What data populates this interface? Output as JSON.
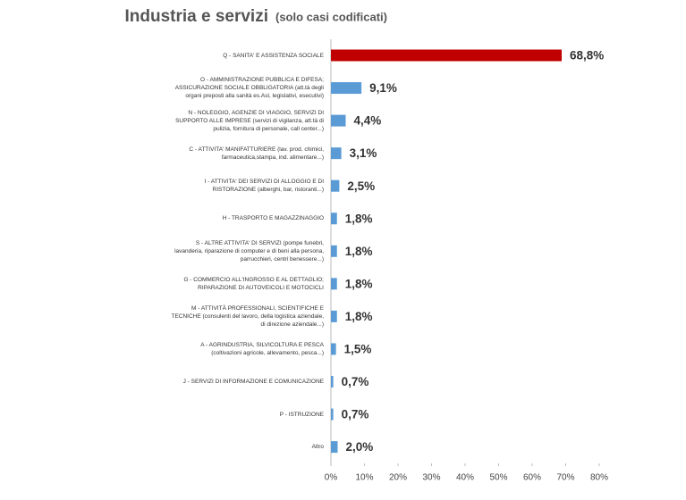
{
  "chart_data": {
    "type": "hbar",
    "title": "Industria e servizi",
    "subtitle": "(solo casi codificati)",
    "categories": [
      "Q - SANITA' E ASSISTENZA SOCIALE",
      "O - AMMINISTRAZIONE PUBBLICA E DIFESA; ASSICURAZIONE SOCIALE OBBLIGATORIA (att.tà degli organi preposti alla sanità es.Asl, legislativi, esecutivi)",
      "N - NOLEGGIO, AGENZIE DI VIAGGIO, SERVIZI DI SUPPORTO ALLE IMPRESE (servizi di vigilanza, att.tà di pulizia, fornitura di personale, call center...)",
      "C - ATTIVITA' MANIFATTURIERE (lav. prod. chimici, farmaceutica,stampa, ind. alimentare...)",
      "I - ATTIVITA' DEI SERVIZI DI ALLOGGIO E DI RISTORAZIONE (alberghi, bar, ristoranti...)",
      "H - TRASPORTO E MAGAZZINAGGIO",
      "S - ALTRE ATTIVITA' DI SERVIZI (pompe funebri, lavanderia, riparazione di computer e di beni alla persona, parrucchieri, centri benessere...)",
      "G - COMMERCIO ALL'INGROSSO E AL DETTAGLIO; RIPARAZIONE DI AUTOVEICOLI E MOTOCICLI",
      "M - ATTIVITÀ PROFESSIONALI, SCIENTIFICHE E TECNICHE (consulenti del lavoro, della logistica aziendale, di direzione aziendale...)",
      "A - AGRINDUSTRIA, SILVICOLTURA E PESCA (coltivazioni agricole, allevamento, pesca...)",
      "J - SERVIZI DI INFORMAZIONE E COMUNICAZIONE",
      "P - ISTRUZIONE",
      "Altro"
    ],
    "values": [
      68.8,
      9.1,
      4.4,
      3.1,
      2.5,
      1.8,
      1.8,
      1.8,
      1.8,
      1.5,
      0.7,
      0.7,
      2.0
    ],
    "value_labels": [
      "68,8%",
      "9,1%",
      "4,4%",
      "3,1%",
      "2,5%",
      "1,8%",
      "1,8%",
      "1,8%",
      "1,8%",
      "1,5%",
      "0,7%",
      "0,7%",
      "2,0%"
    ],
    "colors": [
      "#c00000",
      "#5b9bd5",
      "#5b9bd5",
      "#5b9bd5",
      "#5b9bd5",
      "#5b9bd5",
      "#5b9bd5",
      "#5b9bd5",
      "#5b9bd5",
      "#5b9bd5",
      "#5b9bd5",
      "#5b9bd5",
      "#5b9bd5"
    ],
    "xlim": [
      0,
      80
    ],
    "xticks": [
      {
        "value": 0,
        "label": "0%"
      },
      {
        "value": 10,
        "label": "10%"
      },
      {
        "value": 20,
        "label": "20%"
      },
      {
        "value": 30,
        "label": "30%"
      },
      {
        "value": 40,
        "label": "40%"
      },
      {
        "value": 50,
        "label": "50%"
      },
      {
        "value": 60,
        "label": "60%"
      },
      {
        "value": 70,
        "label": "70%"
      },
      {
        "value": 80,
        "label": "80%"
      }
    ],
    "grid": false
  }
}
